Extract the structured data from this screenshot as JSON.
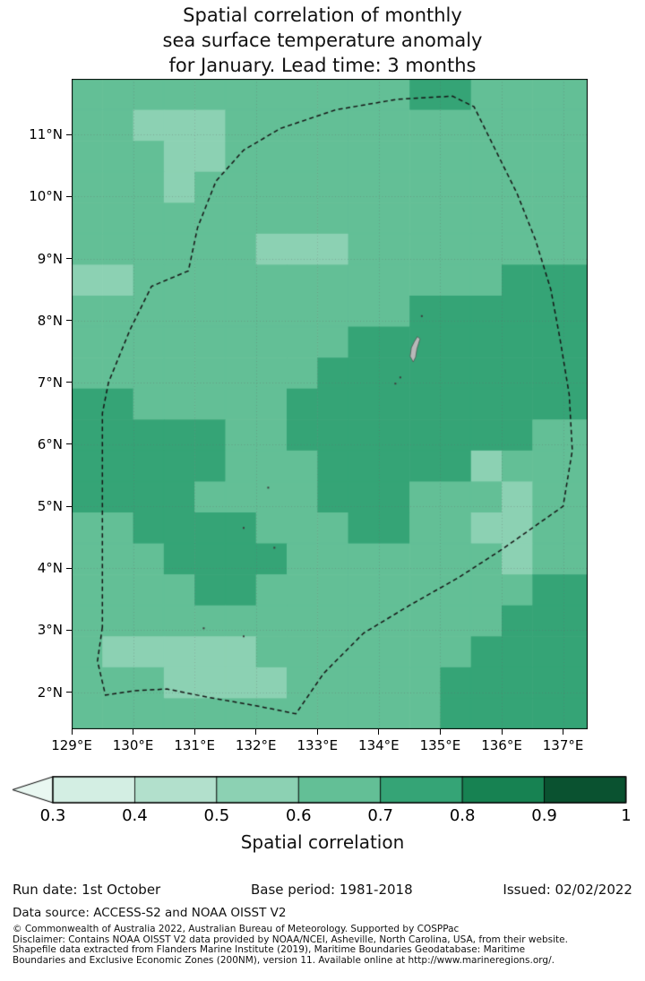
{
  "title": {
    "lines": [
      "Spatial correlation of monthly",
      "sea surface temperature anomaly",
      "for January. Lead time: 3 months"
    ]
  },
  "chart_data": {
    "type": "heatmap",
    "title": "Spatial correlation of monthly sea surface temperature anomaly for January. Lead time: 3 months",
    "x_axis": {
      "label": "",
      "ticks": [
        "129°E",
        "130°E",
        "131°E",
        "132°E",
        "133°E",
        "134°E",
        "135°E",
        "136°E",
        "137°E"
      ],
      "tick_values": [
        129,
        130,
        131,
        132,
        133,
        134,
        135,
        136,
        137
      ],
      "range": [
        129,
        137.4
      ]
    },
    "y_axis": {
      "label": "",
      "ticks": [
        "2°N",
        "3°N",
        "4°N",
        "5°N",
        "6°N",
        "7°N",
        "8°N",
        "9°N",
        "10°N",
        "11°N"
      ],
      "tick_values": [
        2,
        3,
        4,
        5,
        6,
        7,
        8,
        9,
        10,
        11
      ],
      "range": [
        1.4,
        11.9
      ]
    },
    "grid": {
      "lon0": 129,
      "dlon": 0.5,
      "lat0": 11.9,
      "dlat": 0.5,
      "ncols": 17,
      "nrows": 21,
      "encoding": "each digit d = correlation bin [d/10,(d+1)/10)",
      "values_encoded": [
        "66666666666776666",
        "66555666666666666",
        "66655666666666666",
        "66656666666666666",
        "66666666666666666",
        "66666655566666666",
        "55666666666666777",
        "66666666666777777",
        "66666666677777777",
        "66666666777777777",
        "77666667777777777",
        "77777667777777766",
        "77777666777775666",
        "77776666777666566",
        "66777766677665566",
        "66677776666666566",
        "66667766666666677",
        "66666666666666777",
        "65555566666667777",
        "66655556666677777",
        "66666666666677777"
      ]
    },
    "colorscale": {
      "label": "Spatial correlation",
      "levels": [
        0.3,
        0.4,
        0.5,
        0.6,
        0.7,
        0.8,
        0.9,
        1
      ],
      "colors": [
        "#d3eee3",
        "#b2e0cc",
        "#8cd1b3",
        "#63bf96",
        "#35a476",
        "#178252",
        "#0a5230"
      ],
      "under": "#e9f7f1",
      "extend": "min"
    },
    "gridlines": {
      "lon": [
        129,
        130,
        131,
        132,
        133,
        134,
        135,
        136,
        137
      ],
      "lat": [
        2,
        3,
        4,
        5,
        6,
        7,
        8,
        9,
        10,
        11
      ]
    },
    "boundary": {
      "name": "EEZ dashed boundary",
      "points": [
        [
          129.5,
          3.05
        ],
        [
          129.42,
          2.5
        ],
        [
          129.55,
          1.95
        ],
        [
          130.0,
          2.02
        ],
        [
          130.55,
          2.05
        ],
        [
          131.2,
          1.92
        ],
        [
          132.0,
          1.78
        ],
        [
          132.65,
          1.65
        ],
        [
          133.1,
          2.3
        ],
        [
          133.75,
          2.95
        ],
        [
          134.5,
          3.4
        ],
        [
          135.3,
          3.85
        ],
        [
          136.0,
          4.3
        ],
        [
          137.0,
          5.0
        ],
        [
          137.15,
          5.9
        ],
        [
          137.1,
          6.8
        ],
        [
          136.95,
          7.7
        ],
        [
          136.8,
          8.5
        ],
        [
          136.55,
          9.3
        ],
        [
          136.25,
          10.05
        ],
        [
          135.9,
          10.75
        ],
        [
          135.55,
          11.45
        ],
        [
          135.2,
          11.62
        ],
        [
          134.3,
          11.57
        ],
        [
          133.3,
          11.4
        ],
        [
          132.4,
          11.1
        ],
        [
          131.8,
          10.75
        ],
        [
          131.35,
          10.25
        ],
        [
          131.05,
          9.5
        ],
        [
          130.9,
          8.8
        ],
        [
          130.3,
          8.55
        ],
        [
          129.95,
          7.85
        ],
        [
          129.6,
          7.0
        ],
        [
          129.5,
          6.5
        ]
      ]
    },
    "islands": {
      "main_polygon": [
        [
          134.56,
          7.33
        ],
        [
          134.51,
          7.42
        ],
        [
          134.53,
          7.56
        ],
        [
          134.58,
          7.66
        ],
        [
          134.63,
          7.74
        ],
        [
          134.67,
          7.7
        ],
        [
          134.62,
          7.54
        ],
        [
          134.6,
          7.41
        ]
      ],
      "dots": [
        [
          134.35,
          7.08
        ],
        [
          134.27,
          6.98
        ],
        [
          134.7,
          8.07
        ],
        [
          132.2,
          5.3
        ],
        [
          131.8,
          4.65
        ],
        [
          132.3,
          4.33
        ],
        [
          131.15,
          3.03
        ],
        [
          131.8,
          2.9
        ]
      ]
    }
  },
  "colorbar": {
    "tick_labels": [
      "0.3",
      "0.4",
      "0.5",
      "0.6",
      "0.7",
      "0.8",
      "0.9",
      "1"
    ],
    "label": "Spatial correlation"
  },
  "footer": {
    "run_date": "Run date: 1st October",
    "base_period": "Base period: 1981-2018",
    "issued": "Issued: 02/02/2022",
    "data_source": "Data source: ACCESS-S2 and NOAA OISST V2",
    "fine_print": [
      "© Commonwealth of Australia 2022, Australian Bureau of Meteorology. Supported by COSPPac",
      "Disclaimer: Contains NOAA OISST V2 data provided by NOAA/NCEI, Asheville, North Carolina, USA, from their website.",
      "Shapefile data extracted from Flanders Marine Institute (2019), Maritime Boundaries Geodatabase: Maritime",
      "Boundaries and Exclusive Economic Zones (200NM), version 11. Available online at http://www.marineregions.org/."
    ]
  }
}
